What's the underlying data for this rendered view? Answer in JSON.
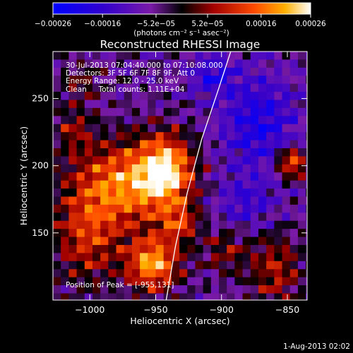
{
  "chart_data": {
    "type": "heatmap",
    "title": "Reconstructed RHESSI Image",
    "xlabel": "Heliocentric X (arcsec)",
    "ylabel": "Heliocentric Y (arcsec)",
    "xlim": [
      -1028,
      -835
    ],
    "ylim": [
      100,
      285
    ],
    "x_ticks": [
      -1000,
      -950,
      -900,
      -850
    ],
    "x_tick_labels": [
      "−1000",
      "−950",
      "−900",
      "−850"
    ],
    "y_ticks": [
      150,
      200,
      250
    ],
    "y_tick_labels": [
      "150",
      "200",
      "250"
    ],
    "colorbar": {
      "range": [
        -0.00026,
        0.00026
      ],
      "ticks": [
        -0.00026,
        -0.00016,
        -5.2e-05,
        5.2e-05,
        0.00016,
        0.00026
      ],
      "tick_labels": [
        "−0.00026",
        "−0.00016",
        "−5.2e−05",
        "5.2e−05",
        "0.00016",
        "0.00026"
      ],
      "unit_label": "(photons cm⁻² s⁻¹ asec⁻²)"
    },
    "annotations": [
      "30-Jul-2013 07:04:40.000 to 07:10:08.000",
      "Detectors: 3F 5F 6F 7F 8F 9F, Att 0",
      "Energy Range: 12.0 - 25.0 keV",
      "Clean     Total counts: 1.11E+04"
    ],
    "peak_label": "Position of Peak = [-955,131]",
    "timestamp": "1-Aug-2013 02:02",
    "limb_curve": [
      [
        -942,
        100
      ],
      [
        -935,
        140
      ],
      [
        -926,
        180
      ],
      [
        -915,
        220
      ],
      [
        -903,
        255
      ],
      [
        -893,
        285
      ]
    ],
    "image_grid": {
      "x_start": -1028,
      "y_start": 285,
      "cell": 6,
      "cols": 33,
      "rows": 32,
      "hot_spots": [
        {
          "x": -975,
          "y": 190,
          "sx": 28,
          "sy": 22,
          "a": 0.00023
        },
        {
          "x": -945,
          "y": 200,
          "sx": 14,
          "sy": 18,
          "a": 0.00024
        },
        {
          "x": -955,
          "y": 130,
          "sx": 14,
          "sy": 14,
          "a": 0.00026
        },
        {
          "x": -1005,
          "y": 150,
          "sx": 18,
          "sy": 25,
          "a": 0.00015
        },
        {
          "x": -1015,
          "y": 230,
          "sx": 10,
          "sy": 12,
          "a": 0.0001
        },
        {
          "x": -935,
          "y": 160,
          "sx": 10,
          "sy": 10,
          "a": 0.00014
        },
        {
          "x": -850,
          "y": 205,
          "sx": 8,
          "sy": 8,
          "a": 0.00023
        },
        {
          "x": -862,
          "y": 125,
          "sx": 14,
          "sy": 20,
          "a": 0.00013
        },
        {
          "x": -900,
          "y": 140,
          "sx": 12,
          "sy": 12,
          "a": 0.0001
        },
        {
          "x": -1010,
          "y": 265,
          "sx": 12,
          "sy": 10,
          "a": 8e-05
        }
      ],
      "cold_spots": [
        {
          "x": -875,
          "y": 235,
          "sx": 20,
          "sy": 25,
          "a": 0.00014
        },
        {
          "x": -910,
          "y": 270,
          "sx": 12,
          "sy": 10,
          "a": 0.00012
        },
        {
          "x": -885,
          "y": 175,
          "sx": 16,
          "sy": 14,
          "a": 9e-05
        }
      ]
    }
  }
}
